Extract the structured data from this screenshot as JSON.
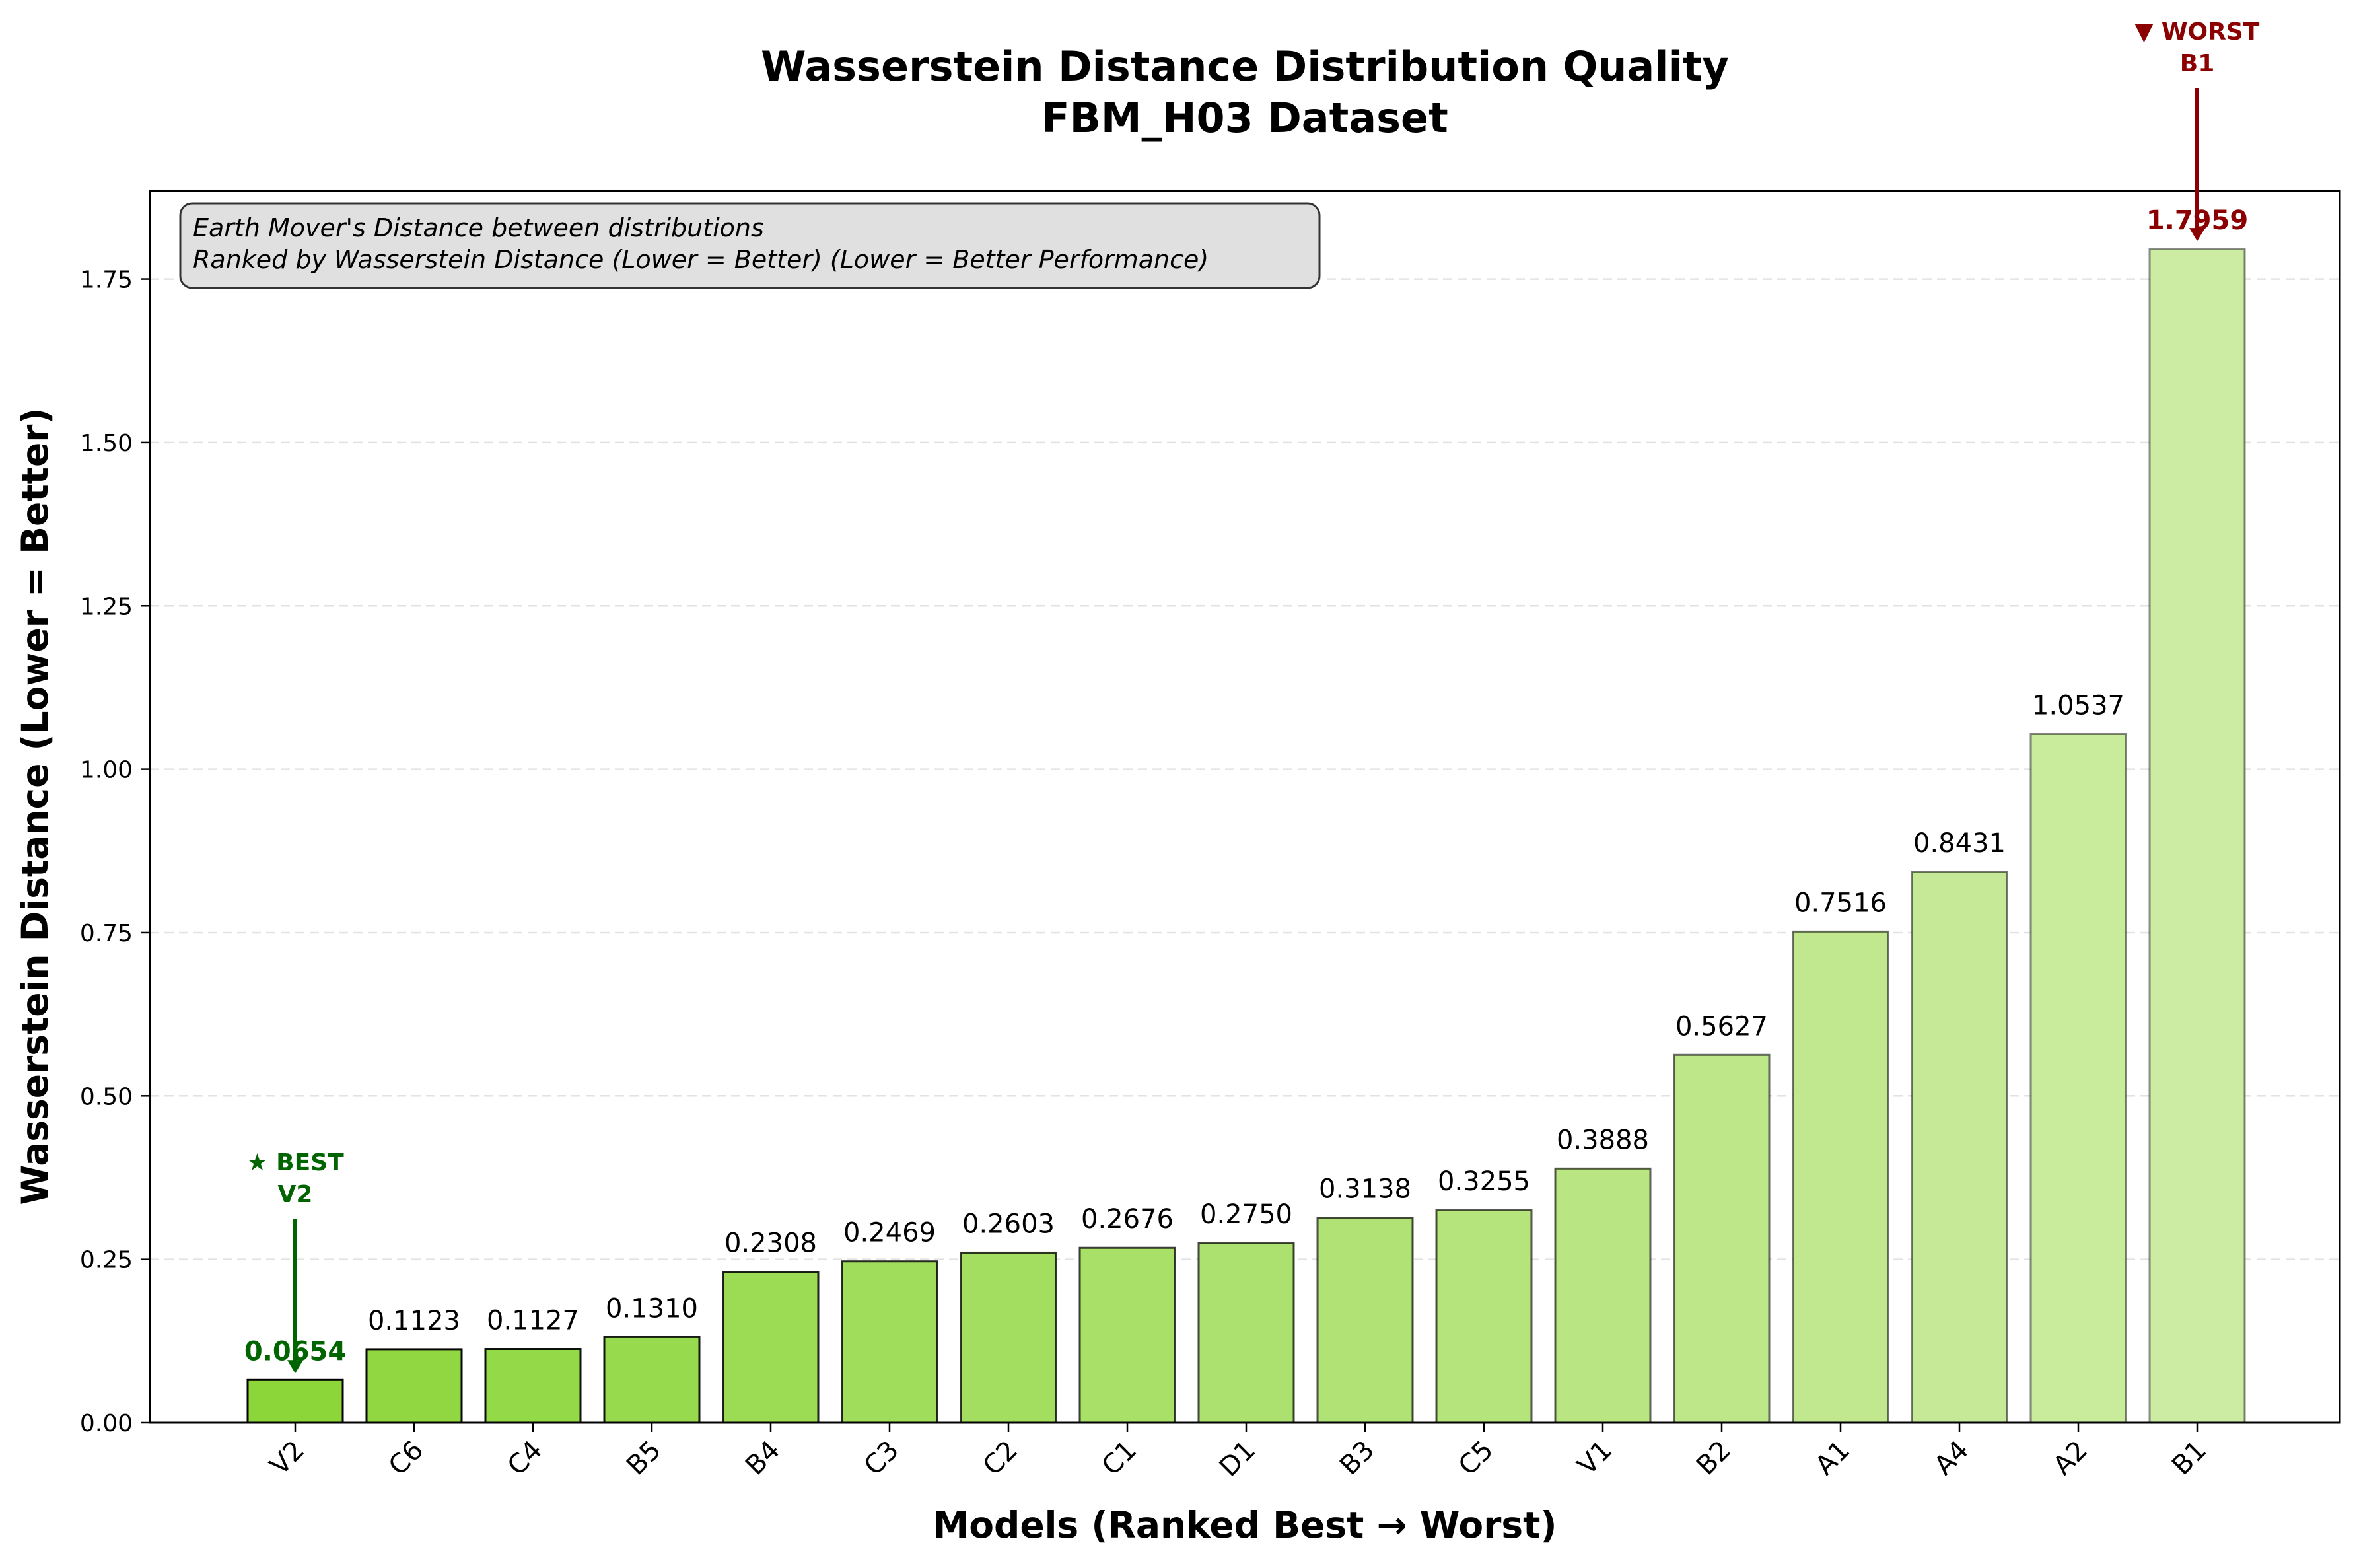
{
  "chart_data": {
    "type": "bar",
    "title_line1": "Wasserstein Distance Distribution Quality",
    "title_line2": "FBM_H03 Dataset",
    "xlabel": "Models (Ranked Best → Worst)",
    "ylabel": "Wasserstein Distance (Lower = Better)",
    "ylim": [
      0,
      1.885
    ],
    "yticks": [
      0.0,
      0.25,
      0.5,
      0.75,
      1.0,
      1.25,
      1.5,
      1.75
    ],
    "ytick_labels": [
      "0.00",
      "0.25",
      "0.50",
      "0.75",
      "1.00",
      "1.25",
      "1.50",
      "1.75"
    ],
    "grid": "y-dashed",
    "categories": [
      "V2",
      "C6",
      "C4",
      "B5",
      "B4",
      "C3",
      "C2",
      "C1",
      "D1",
      "B3",
      "C5",
      "V1",
      "B2",
      "A1",
      "A4",
      "A2",
      "B1"
    ],
    "values": [
      0.0654,
      0.1123,
      0.1127,
      0.131,
      0.2308,
      0.2469,
      0.2603,
      0.2676,
      0.275,
      0.3138,
      0.3255,
      0.3888,
      0.5627,
      0.7516,
      0.8431,
      1.0537,
      1.7959
    ],
    "value_labels": [
      "0.0654",
      "0.1123",
      "0.1127",
      "0.1310",
      "0.2308",
      "0.2469",
      "0.2603",
      "0.2676",
      "0.2750",
      "0.3138",
      "0.3255",
      "0.3888",
      "0.5627",
      "0.7516",
      "0.8431",
      "1.0537",
      "1.7959"
    ],
    "colors": {
      "bar_start": "#8cd63a",
      "bar_end": "#cdeca3",
      "best": "#006400",
      "worst": "#8b0000",
      "info_box_bg": "#e0e0e0"
    },
    "info_box": {
      "line1": "Earth Mover's Distance between distributions",
      "line2": "Ranked by Wasserstein Distance (Lower = Better) (Lower = Better Performance)"
    },
    "best_annotation": {
      "line1": "★ BEST",
      "line2": "V2",
      "index": 0
    },
    "worst_annotation": {
      "line1": "▼ WORST",
      "line2": "B1",
      "index": 16
    }
  }
}
